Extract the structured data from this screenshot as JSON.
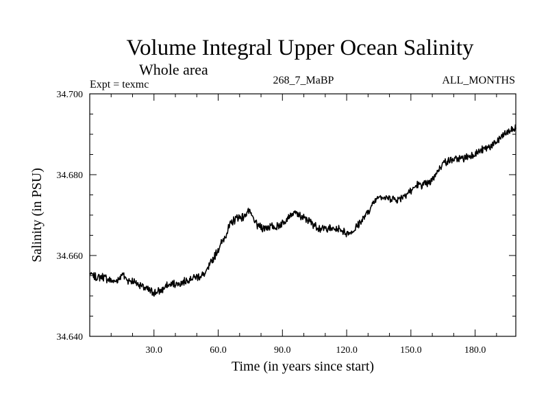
{
  "chart_data": {
    "type": "line",
    "title": "Volume Integral Upper Ocean Salinity",
    "subtitle": "Whole area",
    "annotations": {
      "left": "Expt = texmc",
      "center": "268_7_MaBP",
      "right": "ALL_MONTHS"
    },
    "xlabel": "Time (in years since start)",
    "ylabel": "Salinity (in PSU)",
    "xlim": [
      0,
      199
    ],
    "ylim": [
      34.64,
      34.7
    ],
    "xticks": [
      30,
      60,
      90,
      120,
      150,
      180
    ],
    "xtick_labels": [
      "30.0",
      "60.0",
      "90.0",
      "120.0",
      "150.0",
      "180.0"
    ],
    "yticks": [
      34.64,
      34.66,
      34.68,
      34.7
    ],
    "ytick_labels": [
      "34.640",
      "34.660",
      "34.680",
      "34.700"
    ],
    "grid": false,
    "series": [
      {
        "name": "Salinity",
        "color": "#000000",
        "x": [
          0,
          3,
          6,
          9,
          12,
          14,
          15,
          18,
          21,
          24,
          27,
          30,
          33,
          36,
          39,
          42,
          45,
          48,
          51,
          54,
          57,
          60,
          63,
          66,
          69,
          72,
          74,
          76,
          78,
          81,
          84,
          87,
          90,
          93,
          96,
          99,
          102,
          105,
          108,
          111,
          114,
          117,
          120,
          123,
          126,
          129,
          132,
          135,
          138,
          141,
          144,
          147,
          150,
          153,
          156,
          159,
          162,
          165,
          168,
          171,
          174,
          177,
          180,
          183,
          186,
          189,
          192,
          195,
          199
        ],
        "y": [
          34.6555,
          34.6545,
          34.6548,
          34.654,
          34.6535,
          34.6545,
          34.6555,
          34.6538,
          34.6535,
          34.6525,
          34.6515,
          34.6508,
          34.6512,
          34.6525,
          34.653,
          34.653,
          34.6538,
          34.6545,
          34.6548,
          34.6555,
          34.6585,
          34.6615,
          34.6645,
          34.668,
          34.6695,
          34.6695,
          34.6712,
          34.6695,
          34.6675,
          34.6668,
          34.6672,
          34.667,
          34.668,
          34.6698,
          34.6705,
          34.6695,
          34.6688,
          34.6675,
          34.6665,
          34.6668,
          34.6665,
          34.6665,
          34.6655,
          34.666,
          34.668,
          34.67,
          34.6725,
          34.675,
          34.6742,
          34.6742,
          34.6738,
          34.675,
          34.676,
          34.6775,
          34.6775,
          34.678,
          34.6805,
          34.683,
          34.6835,
          34.6838,
          34.684,
          34.6845,
          34.6852,
          34.686,
          34.6868,
          34.6875,
          34.6892,
          34.6905,
          34.6915
        ]
      }
    ]
  }
}
